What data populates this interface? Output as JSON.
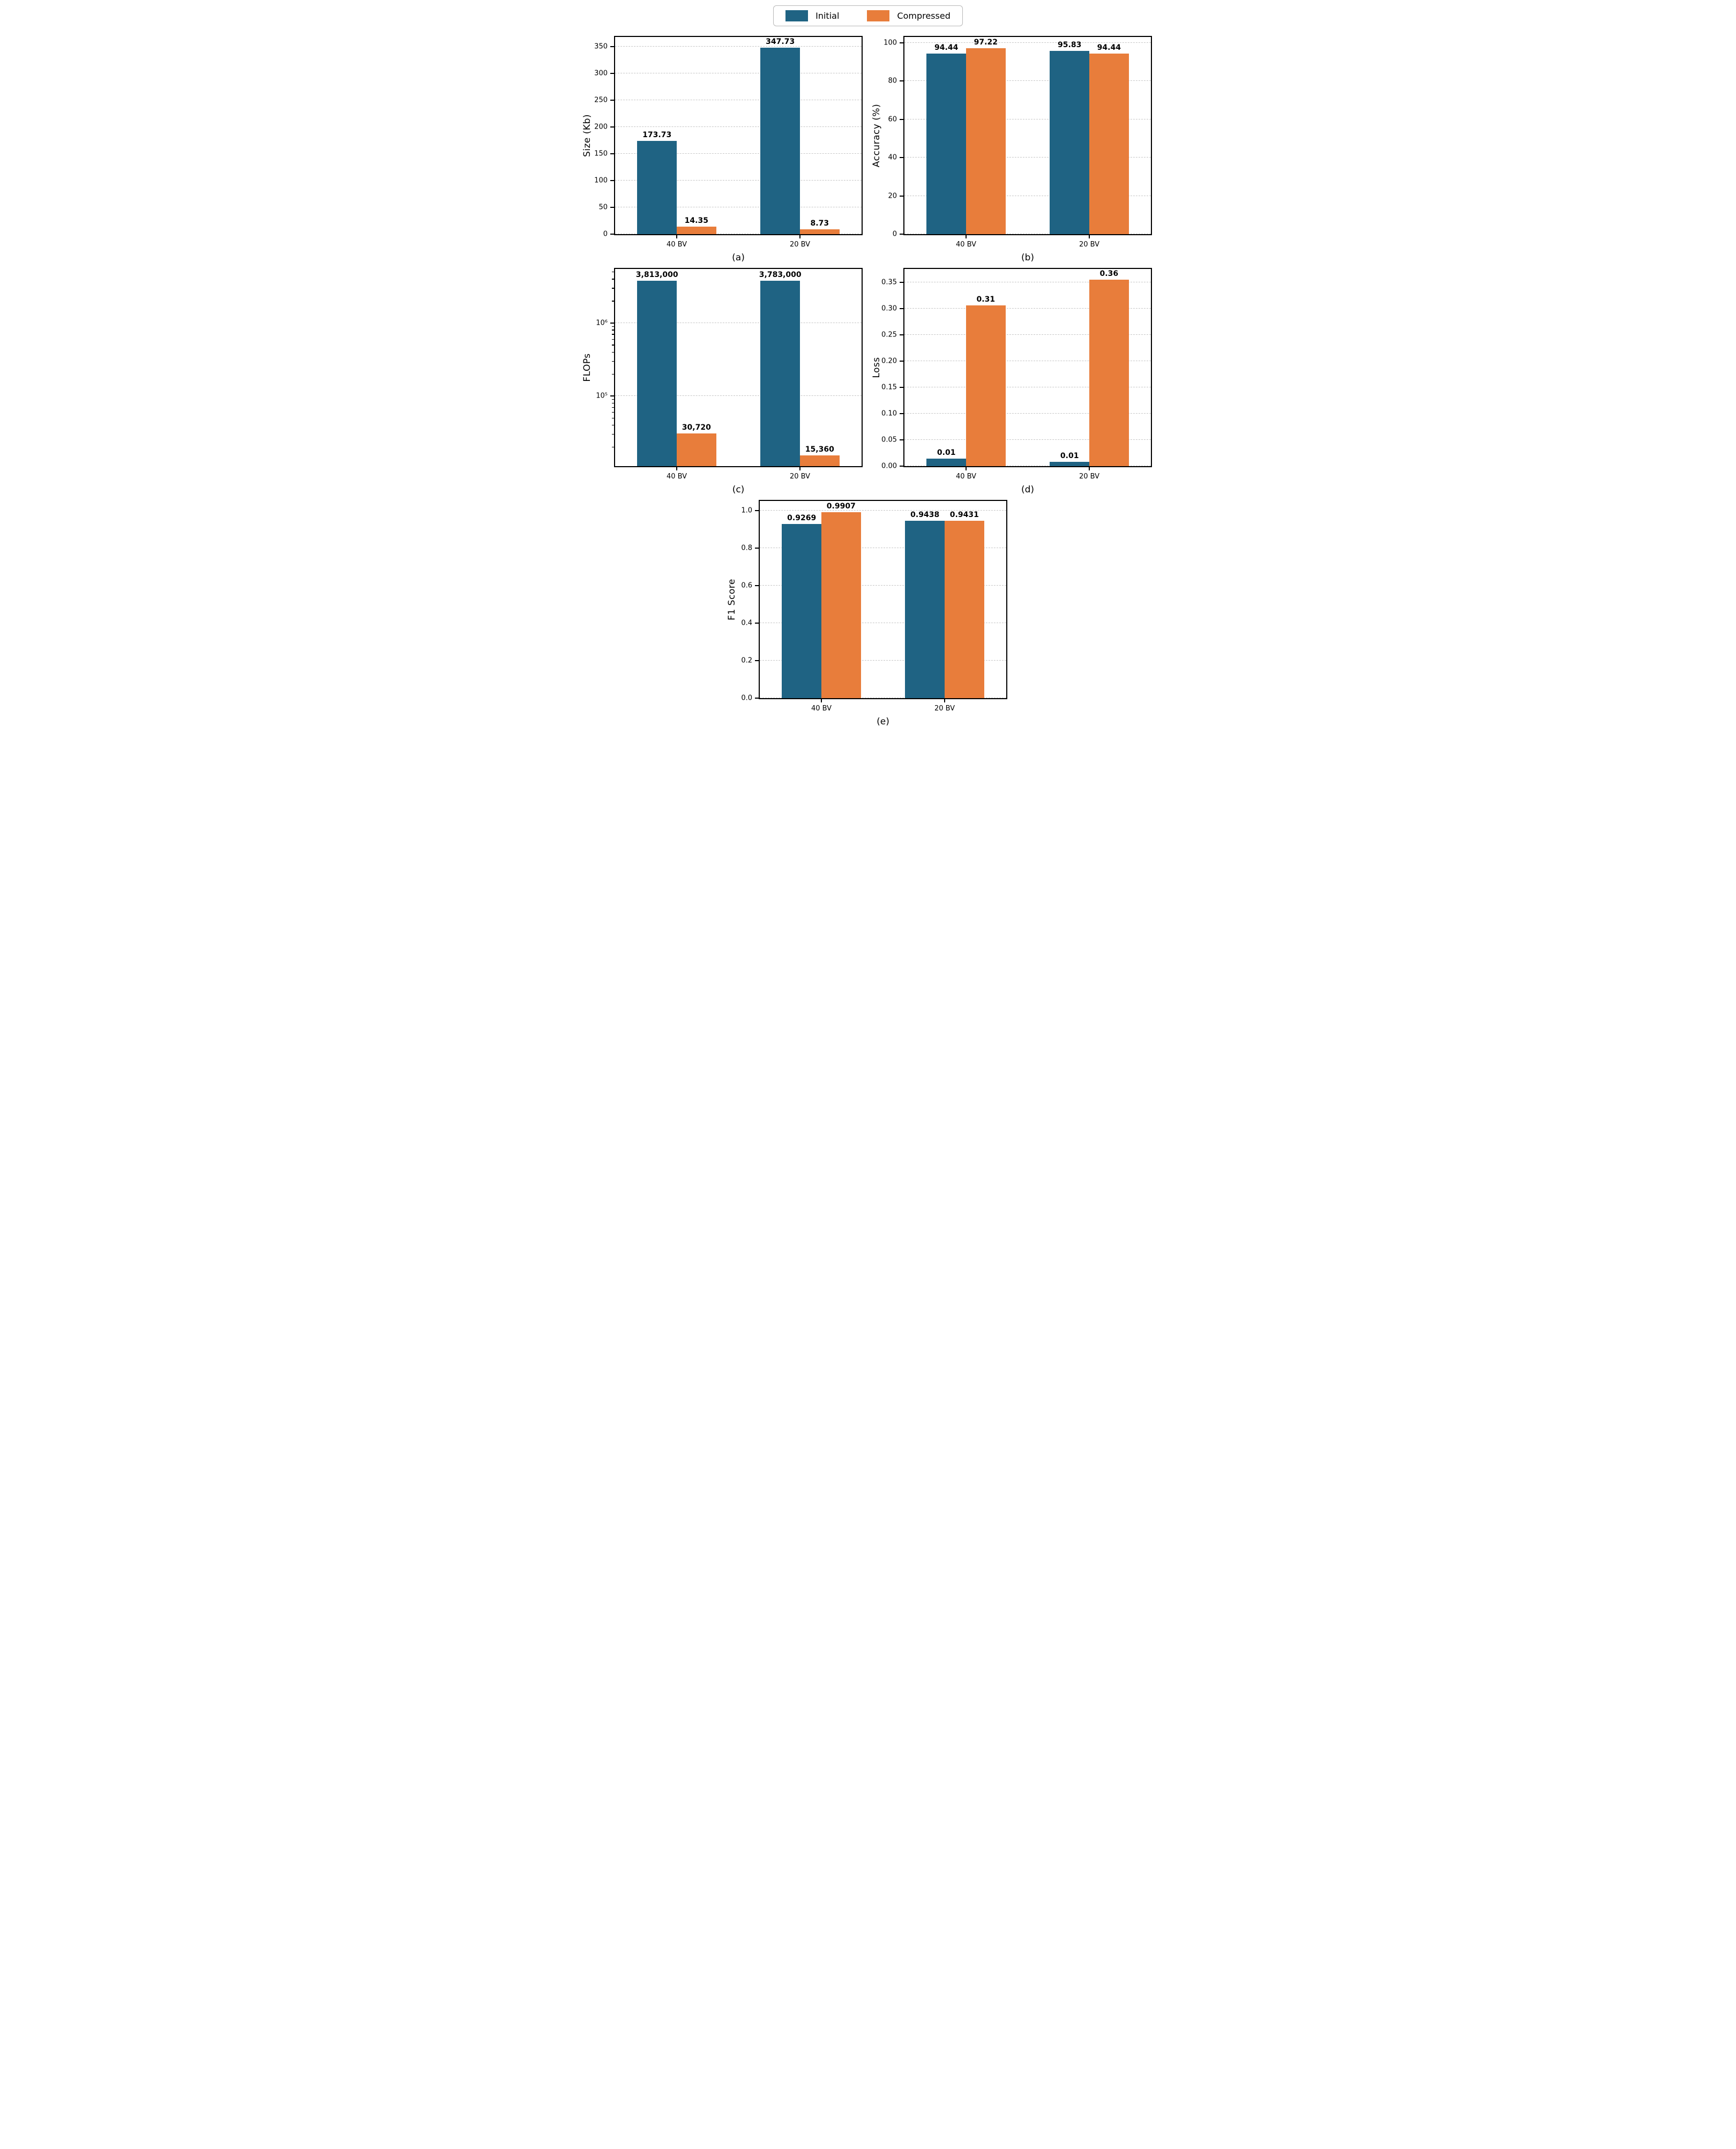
{
  "colors": {
    "initial": "#1F6383",
    "compressed": "#E87D3B",
    "series": [
      "#1F6383",
      "#E87D3B"
    ],
    "grid": "#c6c6c6",
    "spine": "#000000"
  },
  "legend": {
    "items": [
      {
        "label": "Initial",
        "color": "#1F6383"
      },
      {
        "label": "Compressed",
        "color": "#E87D3B"
      }
    ]
  },
  "chart_data": [
    {
      "id": "a",
      "type": "bar",
      "caption": "(a)",
      "ylabel": "Size (Kb)",
      "scale": "linear",
      "ylim": [
        0,
        368
      ],
      "grid": true,
      "legend_position": "top-center",
      "yticks": [
        {
          "v": 0,
          "label": "0"
        },
        {
          "v": 50,
          "label": "50"
        },
        {
          "v": 100,
          "label": "100"
        },
        {
          "v": 150,
          "label": "150"
        },
        {
          "v": 200,
          "label": "200"
        },
        {
          "v": 250,
          "label": "250"
        },
        {
          "v": 300,
          "label": "300"
        },
        {
          "v": 350,
          "label": "350"
        }
      ],
      "categories": [
        "40 BV",
        "20 BV"
      ],
      "series": [
        {
          "name": "Initial",
          "values": [
            173.73,
            347.73
          ],
          "labels": [
            "173.73",
            "347.73"
          ]
        },
        {
          "name": "Compressed",
          "values": [
            14.35,
            8.73
          ],
          "labels": [
            "14.35",
            "8.73"
          ]
        }
      ]
    },
    {
      "id": "b",
      "type": "bar",
      "caption": "(b)",
      "ylabel": "Accuracy (%)",
      "scale": "linear",
      "ylim": [
        0,
        103
      ],
      "grid": true,
      "yticks": [
        {
          "v": 0,
          "label": "0"
        },
        {
          "v": 20,
          "label": "20"
        },
        {
          "v": 40,
          "label": "40"
        },
        {
          "v": 60,
          "label": "60"
        },
        {
          "v": 80,
          "label": "80"
        },
        {
          "v": 100,
          "label": "100"
        }
      ],
      "categories": [
        "40 BV",
        "20 BV"
      ],
      "series": [
        {
          "name": "Initial",
          "values": [
            94.44,
            95.83
          ],
          "labels": [
            "94.44",
            "95.83"
          ]
        },
        {
          "name": "Compressed",
          "values": [
            97.22,
            94.44
          ],
          "labels": [
            "97.22",
            "94.44"
          ]
        }
      ]
    },
    {
      "id": "c",
      "type": "bar",
      "caption": "(c)",
      "ylabel": "FLOPs",
      "scale": "log",
      "ylim": [
        11000,
        5500000
      ],
      "grid": true,
      "yticks": [
        {
          "v": 100000,
          "label": "10⁵"
        },
        {
          "v": 1000000,
          "label": "10⁶"
        }
      ],
      "categories": [
        "40 BV",
        "20 BV"
      ],
      "series": [
        {
          "name": "Initial",
          "values": [
            3813000,
            3783000
          ],
          "labels": [
            "3,813,000",
            "3,783,000"
          ]
        },
        {
          "name": "Compressed",
          "values": [
            30720,
            15360
          ],
          "labels": [
            "30,720",
            "15,360"
          ]
        }
      ]
    },
    {
      "id": "d",
      "type": "bar",
      "caption": "(d)",
      "ylabel": "Loss",
      "scale": "linear",
      "ylim": [
        0,
        0.375
      ],
      "grid": true,
      "yticks": [
        {
          "v": 0.0,
          "label": "0.00"
        },
        {
          "v": 0.05,
          "label": "0.05"
        },
        {
          "v": 0.1,
          "label": "0.10"
        },
        {
          "v": 0.15,
          "label": "0.15"
        },
        {
          "v": 0.2,
          "label": "0.20"
        },
        {
          "v": 0.25,
          "label": "0.25"
        },
        {
          "v": 0.3,
          "label": "0.30"
        },
        {
          "v": 0.35,
          "label": "0.35"
        }
      ],
      "categories": [
        "40 BV",
        "20 BV"
      ],
      "series": [
        {
          "name": "Initial",
          "values": [
            0.014,
            0.008
          ],
          "labels": [
            "0.01",
            "0.01"
          ]
        },
        {
          "name": "Compressed",
          "values": [
            0.306,
            0.355
          ],
          "labels": [
            "0.31",
            "0.36"
          ]
        }
      ]
    },
    {
      "id": "e",
      "type": "bar",
      "caption": "(e)",
      "ylabel": "F1 Score",
      "scale": "linear",
      "ylim": [
        0,
        1.05
      ],
      "grid": true,
      "yticks": [
        {
          "v": 0.0,
          "label": "0.0"
        },
        {
          "v": 0.2,
          "label": "0.2"
        },
        {
          "v": 0.4,
          "label": "0.4"
        },
        {
          "v": 0.6,
          "label": "0.6"
        },
        {
          "v": 0.8,
          "label": "0.8"
        },
        {
          "v": 1.0,
          "label": "1.0"
        }
      ],
      "categories": [
        "40 BV",
        "20 BV"
      ],
      "series": [
        {
          "name": "Initial",
          "values": [
            0.9269,
            0.9438
          ],
          "labels": [
            "0.9269",
            "0.9438"
          ]
        },
        {
          "name": "Compressed",
          "values": [
            0.9907,
            0.9431
          ],
          "labels": [
            "0.9907",
            "0.9431"
          ]
        }
      ]
    }
  ]
}
